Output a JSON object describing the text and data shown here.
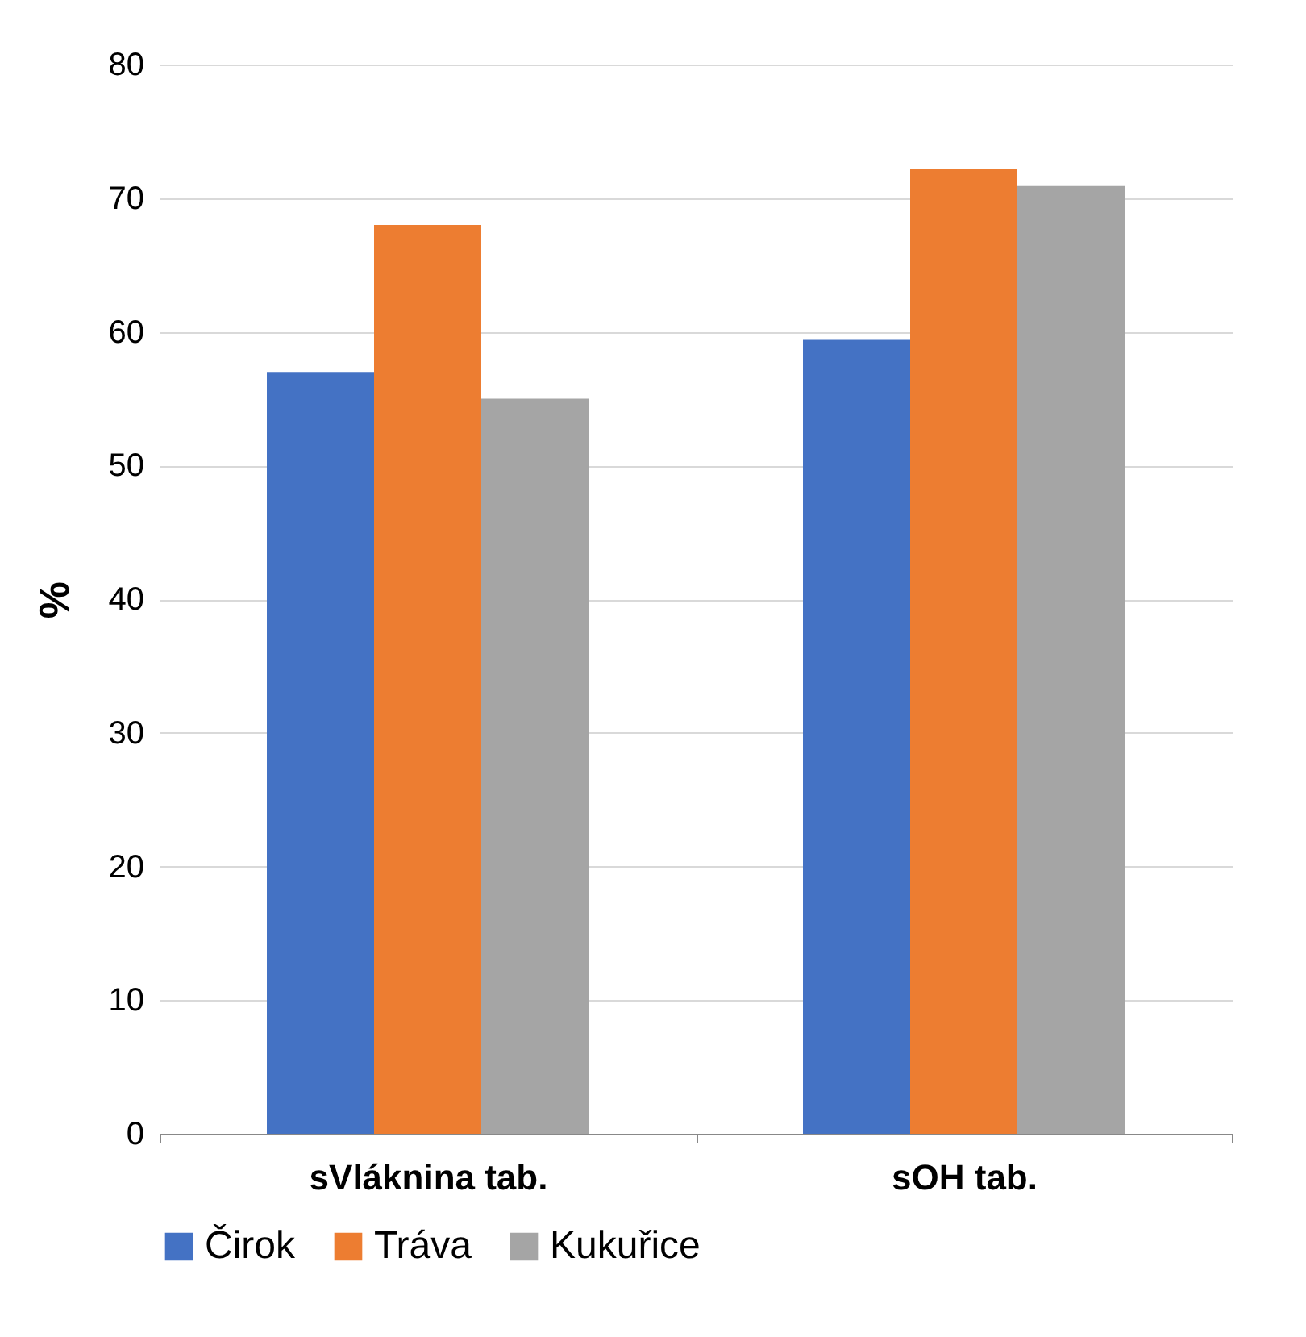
{
  "chart_data": {
    "type": "bar",
    "ylabel": "%",
    "categories": [
      "sVláknina tab.",
      "sOH tab."
    ],
    "series": [
      {
        "name": "Čirok",
        "color": "#4472c4",
        "values": [
          57,
          59.4
        ]
      },
      {
        "name": "Tráva",
        "color": "#ed7d31",
        "values": [
          68,
          72.2
        ]
      },
      {
        "name": "Kukuřice",
        "color": "#a5a5a5",
        "values": [
          55,
          70.9
        ]
      }
    ],
    "ylim": [
      0,
      80
    ],
    "yticks": [
      0,
      10,
      20,
      30,
      40,
      50,
      60,
      70,
      80
    ],
    "grid": "y",
    "legend": "bottom"
  }
}
